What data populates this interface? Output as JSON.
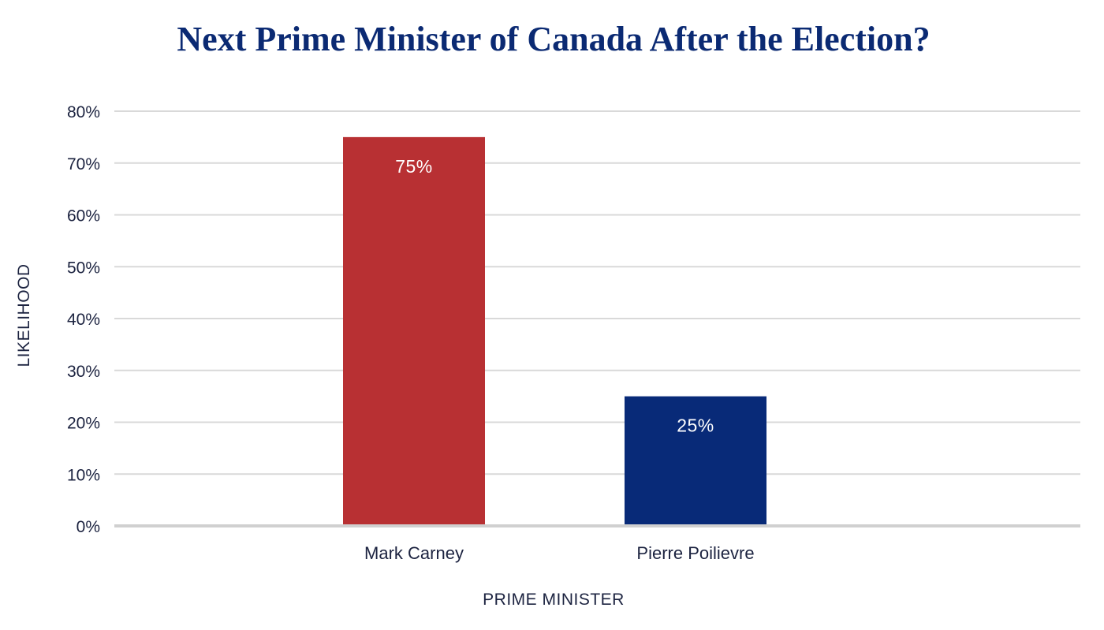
{
  "chart_data": {
    "type": "bar",
    "title": "Next Prime Minister of Canada After the Election?",
    "xlabel": "PRIME MINISTER",
    "ylabel": "LIKELIHOOD",
    "categories": [
      "Mark Carney",
      "Pierre Poilievre"
    ],
    "values": [
      75,
      25
    ],
    "data_labels": [
      "75%",
      "25%"
    ],
    "bar_colors": [
      "#b83033",
      "#082a78"
    ],
    "ylim": [
      0,
      80
    ],
    "yticks": [
      0,
      10,
      20,
      30,
      40,
      50,
      60,
      70,
      80
    ],
    "ytick_labels": [
      "0%",
      "10%",
      "20%",
      "30%",
      "40%",
      "50%",
      "60%",
      "70%",
      "80%"
    ],
    "grid": true,
    "legend": "none",
    "colors": {
      "title": "#0b2a73",
      "text": "#1c2340",
      "grid": "#d9d9d9",
      "baseline": "#d0d0d0"
    }
  }
}
